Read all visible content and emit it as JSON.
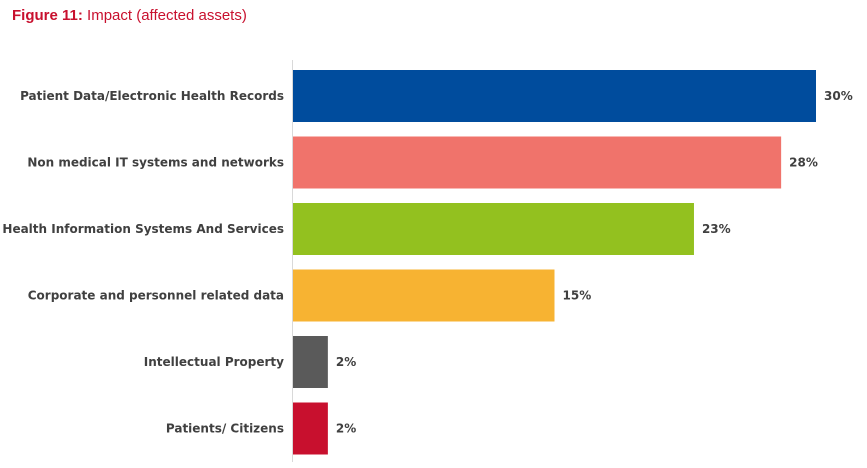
{
  "figure": {
    "prefix": "Figure 11:",
    "title": "Impact (affected assets)"
  },
  "chart_data": {
    "type": "bar",
    "orientation": "horizontal",
    "title": "Impact (affected assets)",
    "categories": [
      "Patient Data/Electronic Health Records",
      "Non medical IT systems and networks",
      "Health Information Systems And Services",
      "Corporate and personnel related data",
      "Intellectual Property",
      "Patients/ Citizens"
    ],
    "values": [
      30,
      28,
      23,
      15,
      2,
      2
    ],
    "value_labels": [
      "30%",
      "28%",
      "23%",
      "15%",
      "2%",
      "2%"
    ],
    "colors": [
      "#004c9d",
      "#f0736b",
      "#93c11f",
      "#f7b332",
      "#5a5a5a",
      "#c8102e"
    ],
    "xlim": [
      0,
      30
    ],
    "unit": "%",
    "grid": false,
    "legend": "none"
  }
}
